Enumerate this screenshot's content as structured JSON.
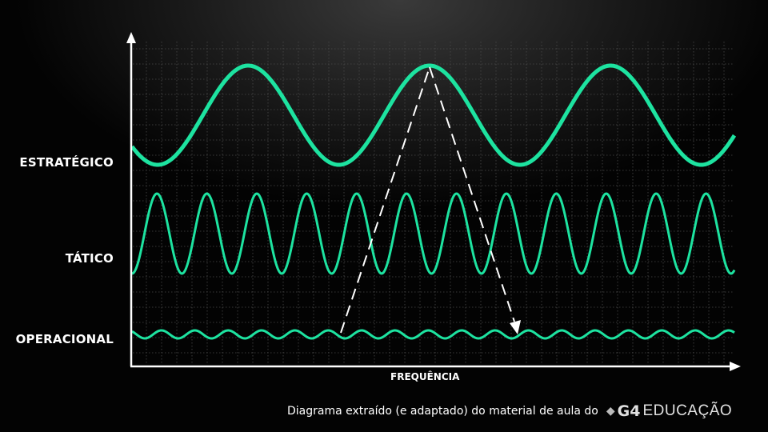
{
  "labels": {
    "strategic": "ESTRATÉGICO",
    "tactical": "TÁTICO",
    "operational": "OPERACIONAL",
    "x_axis": "FREQUÊNCIA"
  },
  "footer": {
    "text": "Diagrama extraído (e adaptado) do material de aula do",
    "logo_bold": "G4",
    "logo_light": "EDUCAÇÃO"
  },
  "colors": {
    "wave": "#1de3a0",
    "axis": "#ffffff",
    "grid": "#555555"
  }
}
